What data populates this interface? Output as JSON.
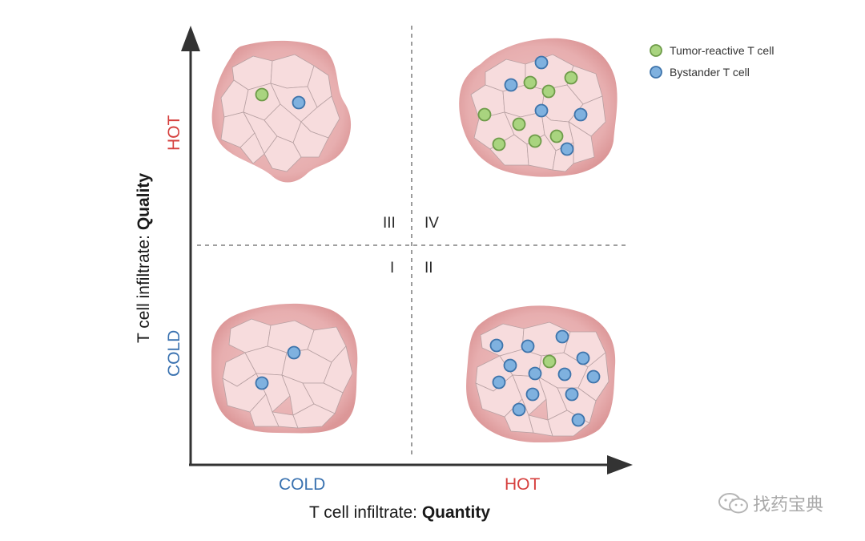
{
  "axes": {
    "x_title_prefix": "T cell infiltrate: ",
    "x_title_bold": "Quantity",
    "y_title_prefix": "T cell infiltrate: ",
    "y_title_bold": "Quality",
    "x_low": "COLD",
    "x_high": "HOT",
    "y_low": "COLD",
    "y_high": "HOT"
  },
  "quadrants": {
    "q1": "I",
    "q2": "II",
    "q3": "III",
    "q4": "IV"
  },
  "legend": {
    "tumor_reactive": "Tumor-reactive T cell",
    "bystander": "Bystander T cell"
  },
  "colors": {
    "tumor_reactive": "#a9d47f",
    "bystander": "#7fb1df",
    "tumor_outer": "#e6a9aa",
    "tumor_inner": "#f7dcdd",
    "cold": "#3a72b0",
    "hot": "#d6403e"
  },
  "tumors": [
    {
      "quadrant": "III",
      "tumor_reactive_cells": 1,
      "bystander_cells": 1
    },
    {
      "quadrant": "IV",
      "tumor_reactive_cells": 9,
      "bystander_cells": 6
    },
    {
      "quadrant": "I",
      "tumor_reactive_cells": 0,
      "bystander_cells": 2
    },
    {
      "quadrant": "II",
      "tumor_reactive_cells": 1,
      "bystander_cells": 15
    }
  ],
  "watermark": "找药宝典"
}
